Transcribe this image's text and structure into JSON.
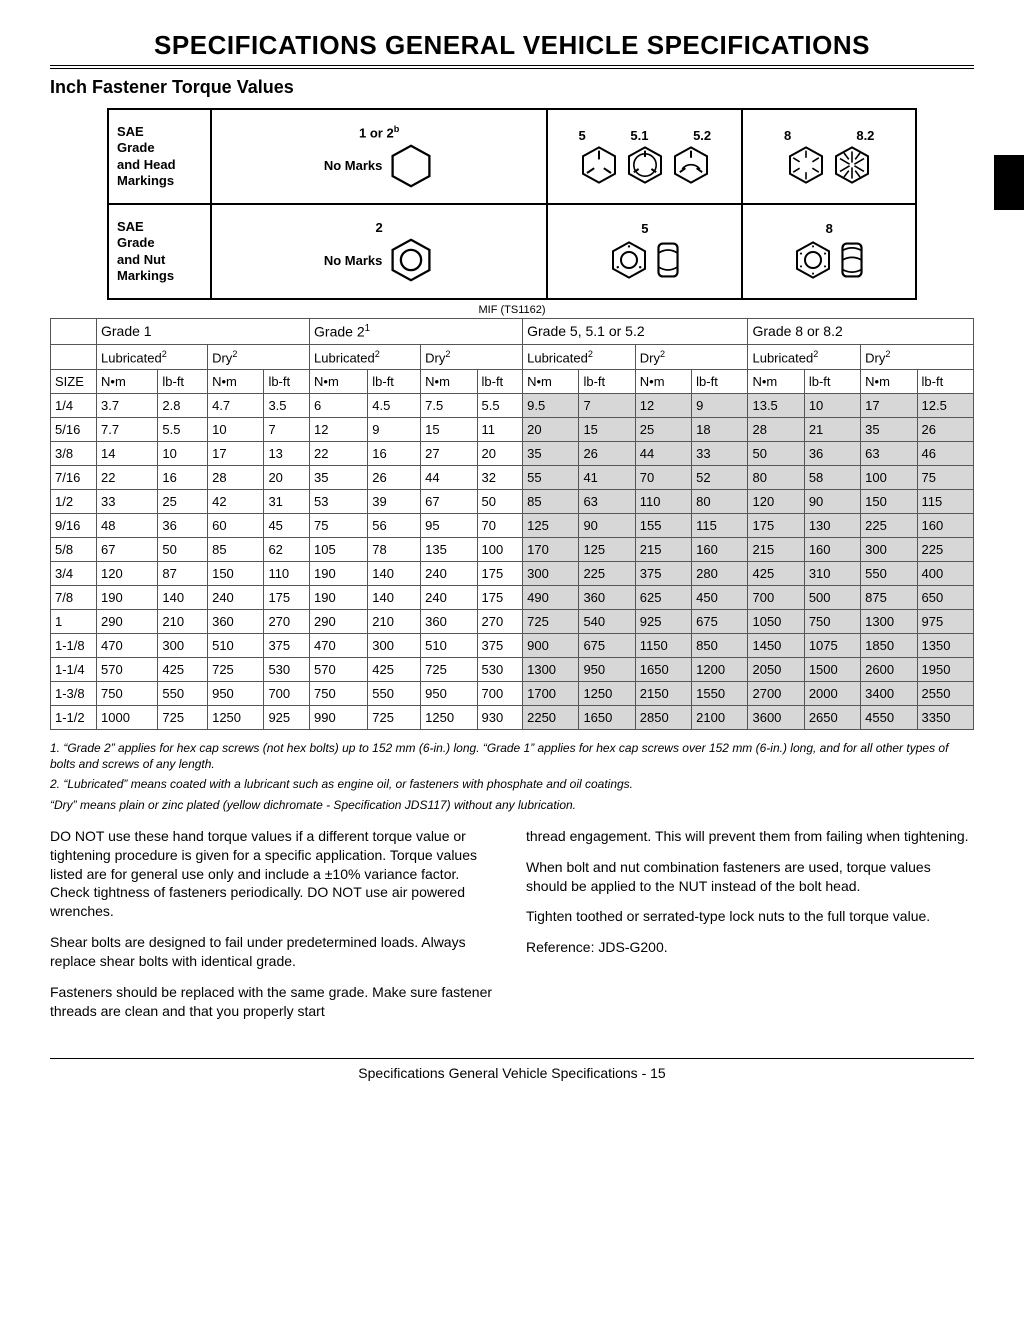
{
  "title": "SPECIFICATIONS   GENERAL VEHICLE SPECIFICATIONS",
  "section": "Inch Fastener Torque Values",
  "markings": {
    "head_label": "SAE\nGrade\nand Head\nMarkings",
    "nut_label": "SAE\nGrade\nand Nut\nMarkings",
    "no_marks": "No Marks",
    "head_groups": [
      {
        "labels": [
          "1 or 2",
          "b"
        ],
        "no_marks": true
      },
      {
        "labels": [
          "5",
          "5.1",
          "5.2"
        ]
      },
      {
        "labels": [
          "8",
          "8.2"
        ]
      }
    ],
    "nut_groups": [
      {
        "labels": [
          "2"
        ],
        "no_marks": true
      },
      {
        "labels": [
          "5"
        ]
      },
      {
        "labels": [
          "8"
        ]
      }
    ]
  },
  "code": "MIF (TS1162)",
  "torque_table": {
    "grade_headers": [
      "Grade 1",
      "Grade 2",
      "Grade 5, 5.1 or 5.2",
      "Grade 8 or 8.2"
    ],
    "grade2_sup": "1",
    "sub_headers": [
      "Lubricated",
      "Dry"
    ],
    "sub_sup": "2",
    "unit_headers": [
      "N•m",
      "lb-ft"
    ],
    "size_label": "SIZE",
    "rows": [
      {
        "size": "1/4",
        "v": [
          "3.7",
          "2.8",
          "4.7",
          "3.5",
          "6",
          "4.5",
          "7.5",
          "5.5",
          "9.5",
          "7",
          "12",
          "9",
          "13.5",
          "10",
          "17",
          "12.5"
        ]
      },
      {
        "size": "5/16",
        "v": [
          "7.7",
          "5.5",
          "10",
          "7",
          "12",
          "9",
          "15",
          "11",
          "20",
          "15",
          "25",
          "18",
          "28",
          "21",
          "35",
          "26"
        ]
      },
      {
        "size": "3/8",
        "v": [
          "14",
          "10",
          "17",
          "13",
          "22",
          "16",
          "27",
          "20",
          "35",
          "26",
          "44",
          "33",
          "50",
          "36",
          "63",
          "46"
        ]
      },
      {
        "size": "7/16",
        "v": [
          "22",
          "16",
          "28",
          "20",
          "35",
          "26",
          "44",
          "32",
          "55",
          "41",
          "70",
          "52",
          "80",
          "58",
          "100",
          "75"
        ]
      },
      {
        "size": "1/2",
        "v": [
          "33",
          "25",
          "42",
          "31",
          "53",
          "39",
          "67",
          "50",
          "85",
          "63",
          "110",
          "80",
          "120",
          "90",
          "150",
          "115"
        ]
      },
      {
        "size": "9/16",
        "v": [
          "48",
          "36",
          "60",
          "45",
          "75",
          "56",
          "95",
          "70",
          "125",
          "90",
          "155",
          "115",
          "175",
          "130",
          "225",
          "160"
        ]
      },
      {
        "size": "5/8",
        "v": [
          "67",
          "50",
          "85",
          "62",
          "105",
          "78",
          "135",
          "100",
          "170",
          "125",
          "215",
          "160",
          "215",
          "160",
          "300",
          "225"
        ]
      },
      {
        "size": "3/4",
        "v": [
          "120",
          "87",
          "150",
          "110",
          "190",
          "140",
          "240",
          "175",
          "300",
          "225",
          "375",
          "280",
          "425",
          "310",
          "550",
          "400"
        ]
      },
      {
        "size": "7/8",
        "v": [
          "190",
          "140",
          "240",
          "175",
          "190",
          "140",
          "240",
          "175",
          "490",
          "360",
          "625",
          "450",
          "700",
          "500",
          "875",
          "650"
        ]
      },
      {
        "size": "1",
        "v": [
          "290",
          "210",
          "360",
          "270",
          "290",
          "210",
          "360",
          "270",
          "725",
          "540",
          "925",
          "675",
          "1050",
          "750",
          "1300",
          "975"
        ]
      },
      {
        "size": "1-1/8",
        "v": [
          "470",
          "300",
          "510",
          "375",
          "470",
          "300",
          "510",
          "375",
          "900",
          "675",
          "1150",
          "850",
          "1450",
          "1075",
          "1850",
          "1350"
        ]
      },
      {
        "size": "1-1/4",
        "v": [
          "570",
          "425",
          "725",
          "530",
          "570",
          "425",
          "725",
          "530",
          "1300",
          "950",
          "1650",
          "1200",
          "2050",
          "1500",
          "2600",
          "1950"
        ]
      },
      {
        "size": "1-3/8",
        "v": [
          "750",
          "550",
          "950",
          "700",
          "750",
          "550",
          "950",
          "700",
          "1700",
          "1250",
          "2150",
          "1550",
          "2700",
          "2000",
          "3400",
          "2550"
        ]
      },
      {
        "size": "1-1/2",
        "v": [
          "1000",
          "725",
          "1250",
          "925",
          "990",
          "725",
          "1250",
          "930",
          "2250",
          "1650",
          "2850",
          "2100",
          "3600",
          "2650",
          "4550",
          "3350"
        ]
      }
    ]
  },
  "notes": {
    "n1": "1. “Grade 2” applies for hex cap screws (not hex bolts) up to 152 mm (6-in.) long. “Grade 1” applies for hex cap screws over 152 mm (6-in.) long, and for all other types of bolts and screws of any length.",
    "n2": "2. “Lubricated” means coated with a lubricant such as engine oil, or fasteners with phosphate and oil coatings.",
    "n3": "“Dry” means plain or zinc plated (yellow dichromate - Specification JDS117) without any lubrication."
  },
  "body": {
    "p1": "DO NOT use these hand torque values if a different torque value or tightening procedure is given for a specific application. Torque values listed are for general use only and include a ±10% variance factor. Check tightness of fasteners periodically. DO NOT use air powered wrenches.",
    "p2": "Shear bolts are designed to fail under predetermined loads. Always replace shear bolts with identical grade.",
    "p3": "Fasteners should be replaced with the same grade. Make sure fastener threads are clean and that you properly start",
    "p4": "thread engagement. This will prevent them from failing when tightening.",
    "p5": "When bolt and nut combination fasteners are used, torque values should be applied to the NUT instead of the bolt head.",
    "p6": "Tighten toothed or serrated-type lock nuts to the full torque value.",
    "p7": "Reference: JDS-G200."
  },
  "footer": "Specifications   General Vehicle Specifications  - 15"
}
